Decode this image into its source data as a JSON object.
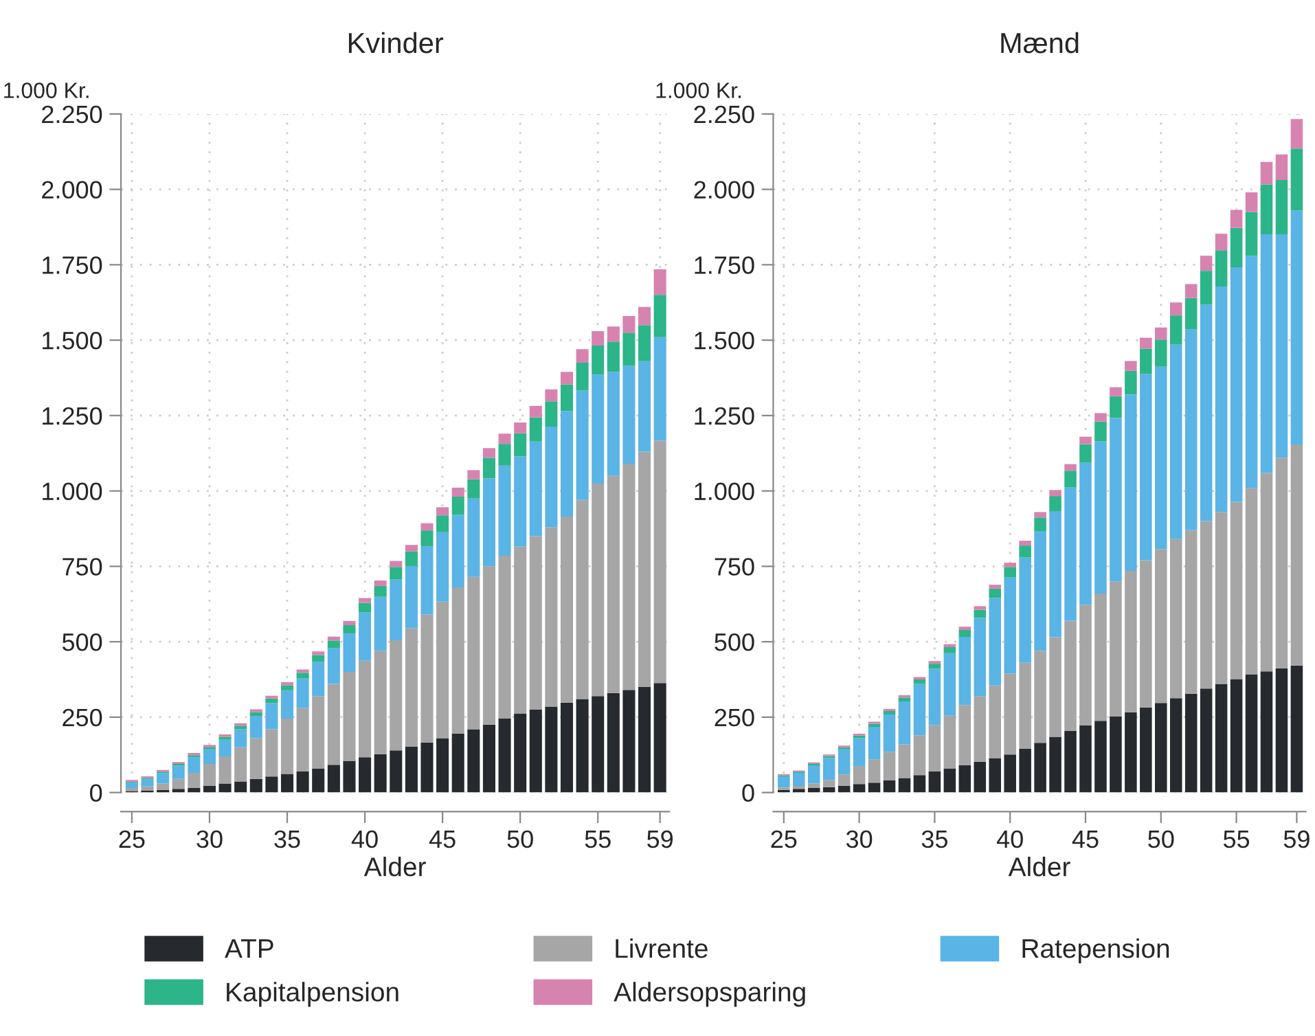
{
  "chart_data": [
    {
      "type": "bar",
      "stacked": true,
      "title": "Kvinder",
      "ylabel": "1.000 Kr.",
      "xlabel": "Alder",
      "legend": "bottom",
      "grid": true,
      "x": [
        25,
        26,
        27,
        28,
        29,
        30,
        31,
        32,
        33,
        34,
        35,
        36,
        37,
        38,
        39,
        40,
        41,
        42,
        43,
        44,
        45,
        46,
        47,
        48,
        49,
        50,
        51,
        52,
        53,
        54,
        55,
        56,
        57,
        58,
        59
      ],
      "xlim": [
        24.3,
        59.6
      ],
      "xticks": [
        25,
        30,
        35,
        40,
        45,
        50,
        55,
        59
      ],
      "ylim": [
        0,
        2250
      ],
      "yticks": [
        {
          "value": 0,
          "label": "0"
        },
        {
          "value": 250,
          "label": "250"
        },
        {
          "value": 500,
          "label": "500"
        },
        {
          "value": 750,
          "label": "750"
        },
        {
          "value": 1000,
          "label": "1.000"
        },
        {
          "value": 1250,
          "label": "1.250"
        },
        {
          "value": 1500,
          "label": "1.500"
        },
        {
          "value": 1750,
          "label": "1.750"
        },
        {
          "value": 2000,
          "label": "2.000"
        },
        {
          "value": 2250,
          "label": "2.250"
        }
      ],
      "series": [
        {
          "name": "ATP",
          "color": "#262a2e",
          "values": [
            5,
            7,
            9,
            12,
            15,
            22,
            30,
            37,
            45,
            53,
            62,
            70,
            80,
            92,
            105,
            117,
            127,
            140,
            152,
            166,
            180,
            195,
            210,
            225,
            245,
            262,
            275,
            285,
            298,
            310,
            320,
            330,
            340,
            350,
            363
          ]
        },
        {
          "name": "Livrente",
          "color": "#a6a6a6",
          "values": [
            10,
            13,
            21,
            33,
            50,
            73,
            90,
            113,
            135,
            157,
            183,
            210,
            240,
            268,
            295,
            320,
            343,
            365,
            393,
            424,
            453,
            485,
            505,
            525,
            540,
            553,
            575,
            595,
            617,
            660,
            704,
            720,
            750,
            780,
            804
          ]
        },
        {
          "name": "Ratepension",
          "color": "#5ab4e5",
          "values": [
            18,
            24,
            34,
            44,
            52,
            48,
            55,
            60,
            74,
            87,
            94,
            98,
            114,
            119,
            127,
            160,
            179,
            201,
            206,
            227,
            230,
            241,
            260,
            292,
            299,
            300,
            314,
            333,
            350,
            363,
            362,
            345,
            325,
            300,
            343
          ]
        },
        {
          "name": "Kapitalpension",
          "color": "#2bb589",
          "values": [
            3,
            4,
            5,
            6,
            7,
            8,
            10,
            12,
            13,
            15,
            17,
            19,
            22,
            25,
            28,
            32,
            36,
            42,
            48,
            52,
            56,
            60,
            64,
            68,
            72,
            76,
            80,
            84,
            88,
            92,
            96,
            100,
            110,
            120,
            140
          ]
        },
        {
          "name": "Aldersopsparing",
          "color": "#d783b0",
          "values": [
            6,
            6,
            6,
            6,
            7,
            7,
            8,
            8,
            9,
            9,
            10,
            11,
            12,
            13,
            14,
            16,
            18,
            20,
            22,
            24,
            27,
            30,
            30,
            32,
            34,
            36,
            38,
            40,
            42,
            45,
            48,
            50,
            55,
            60,
            85
          ]
        }
      ]
    },
    {
      "type": "bar",
      "stacked": true,
      "title": "Mænd",
      "ylabel": "1.000 Kr.",
      "xlabel": "Alder",
      "legend": "bottom",
      "grid": true,
      "x": [
        25,
        26,
        27,
        28,
        29,
        30,
        31,
        32,
        33,
        34,
        35,
        36,
        37,
        38,
        39,
        40,
        41,
        42,
        43,
        44,
        45,
        46,
        47,
        48,
        49,
        50,
        51,
        52,
        53,
        54,
        55,
        56,
        57,
        58,
        59
      ],
      "xlim": [
        24.3,
        59.6
      ],
      "xticks": [
        25,
        30,
        35,
        40,
        45,
        50,
        55,
        59
      ],
      "ylim": [
        0,
        2250
      ],
      "yticks": [
        {
          "value": 0,
          "label": "0"
        },
        {
          "value": 250,
          "label": "250"
        },
        {
          "value": 500,
          "label": "500"
        },
        {
          "value": 750,
          "label": "750"
        },
        {
          "value": 1000,
          "label": "1.000"
        },
        {
          "value": 1250,
          "label": "1.250"
        },
        {
          "value": 1500,
          "label": "1.500"
        },
        {
          "value": 1750,
          "label": "1.750"
        },
        {
          "value": 2000,
          "label": "2.000"
        },
        {
          "value": 2250,
          "label": "2.250"
        }
      ],
      "series": [
        {
          "name": "ATP",
          "color": "#262a2e",
          "values": [
            9,
            12,
            15,
            18,
            22,
            28,
            33,
            40,
            48,
            58,
            70,
            80,
            90,
            102,
            114,
            126,
            145,
            165,
            185,
            205,
            223,
            238,
            252,
            266,
            282,
            297,
            313,
            328,
            345,
            360,
            376,
            392,
            402,
            412,
            421
          ]
        },
        {
          "name": "Livrente",
          "color": "#a6a6a6",
          "values": [
            8,
            10,
            15,
            24,
            38,
            60,
            77,
            95,
            112,
            132,
            154,
            175,
            200,
            218,
            241,
            269,
            285,
            305,
            330,
            365,
            400,
            422,
            448,
            469,
            488,
            510,
            527,
            542,
            555,
            570,
            588,
            618,
            658,
            698,
            733
          ]
        },
        {
          "name": "Ratepension",
          "color": "#5ab4e5",
          "values": [
            37,
            43,
            60,
            73,
            83,
            92,
            108,
            124,
            142,
            170,
            186,
            207,
            226,
            259,
            290,
            318,
            349,
            397,
            418,
            442,
            471,
            504,
            542,
            585,
            618,
            605,
            645,
            666,
            718,
            748,
            778,
            770,
            791,
            741,
            776
          ]
        },
        {
          "name": "Kapitalpension",
          "color": "#2bb589",
          "values": [
            3,
            4,
            5,
            6,
            7,
            9,
            10,
            11,
            13,
            15,
            17,
            20,
            23,
            27,
            31,
            35,
            40,
            45,
            50,
            55,
            61,
            66,
            72,
            78,
            84,
            90,
            97,
            104,
            112,
            120,
            130,
            145,
            165,
            180,
            205
          ]
        },
        {
          "name": "Aldersopsparing",
          "color": "#d783b0",
          "values": [
            4,
            4,
            5,
            5,
            6,
            6,
            7,
            7,
            8,
            8,
            9,
            10,
            11,
            12,
            13,
            14,
            16,
            18,
            20,
            22,
            25,
            28,
            30,
            33,
            36,
            40,
            43,
            46,
            50,
            55,
            60,
            65,
            75,
            85,
            98
          ]
        }
      ]
    }
  ]
}
